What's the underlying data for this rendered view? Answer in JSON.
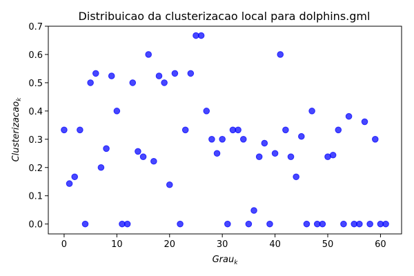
{
  "chart_data": {
    "type": "scatter",
    "title": "Distribuicao da clusterizacao local para dolphins.gml",
    "xlabel": {
      "base": "Grau",
      "sub": "k"
    },
    "ylabel": {
      "base": "Clusterizacao",
      "sub": "k"
    },
    "xlim": [
      -3,
      64
    ],
    "ylim": [
      -0.035,
      0.7
    ],
    "xticks": [
      0,
      10,
      20,
      30,
      40,
      50,
      60
    ],
    "yticks": [
      0.0,
      0.1,
      0.2,
      0.3,
      0.4,
      0.5,
      0.6,
      0.7
    ],
    "ytick_labels": [
      "0.0",
      "0.1",
      "0.2",
      "0.3",
      "0.4",
      "0.5",
      "0.6",
      "0.7"
    ],
    "grid": false,
    "legend": "none",
    "marker_color": "#0000ff",
    "x": [
      0,
      1,
      2,
      3,
      4,
      5,
      6,
      7,
      8,
      9,
      10,
      11,
      12,
      13,
      14,
      15,
      16,
      17,
      18,
      19,
      20,
      21,
      22,
      23,
      24,
      25,
      26,
      27,
      28,
      29,
      30,
      31,
      32,
      33,
      34,
      35,
      36,
      37,
      38,
      39,
      40,
      41,
      42,
      43,
      44,
      45,
      46,
      47,
      48,
      49,
      50,
      51,
      52,
      53,
      54,
      55,
      56,
      57,
      58,
      59,
      60,
      61
    ],
    "y": [
      0.333,
      0.143,
      0.167,
      0.333,
      0.0,
      0.5,
      0.533,
      0.2,
      0.267,
      0.524,
      0.4,
      0.0,
      0.0,
      0.5,
      0.257,
      0.238,
      0.6,
      0.222,
      0.524,
      0.5,
      0.139,
      0.533,
      0.0,
      0.333,
      0.533,
      0.667,
      0.667,
      0.4,
      0.3,
      0.25,
      0.3,
      0.0,
      0.333,
      0.333,
      0.3,
      0.0,
      0.048,
      0.238,
      0.286,
      0.0,
      0.25,
      0.6,
      0.333,
      0.238,
      0.167,
      0.31,
      0.0,
      0.4,
      0.0,
      0.0,
      0.238,
      0.244,
      0.333,
      0.0,
      0.381,
      0.0,
      0.0,
      0.362,
      0.0,
      0.3,
      0.0,
      0.0
    ]
  }
}
